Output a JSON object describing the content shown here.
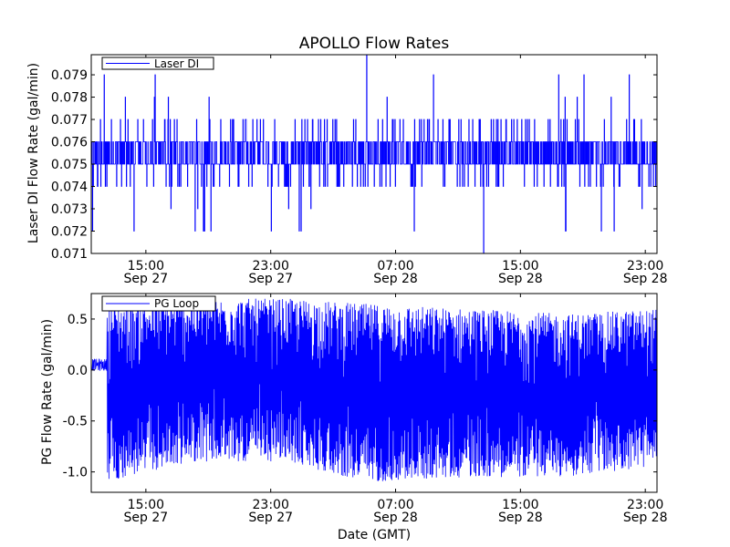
{
  "figure": {
    "title": "APOLLO Flow Rates",
    "xlabel": "Date (GMT)"
  },
  "chart_data": [
    {
      "type": "line",
      "ylabel": "Laser DI Flow Rate (gal/min)",
      "ylim": [
        0.071,
        0.0799
      ],
      "xlim": [
        "2012-09-27 11:30",
        "2012-09-28 23:45"
      ],
      "yticks": [
        0.071,
        0.072,
        0.073,
        0.074,
        0.075,
        0.076,
        0.077,
        0.078,
        0.079
      ],
      "ytick_labels": [
        "0.071",
        "0.072",
        "0.073",
        "0.074",
        "0.075",
        "0.076",
        "0.077",
        "0.078",
        "0.079"
      ],
      "xticks": [
        {
          "date": "Sep 27",
          "time": "15:00"
        },
        {
          "date": "Sep 27",
          "time": "23:00"
        },
        {
          "date": "Sep 28",
          "time": "07:00"
        },
        {
          "date": "Sep 28",
          "time": "15:00"
        },
        {
          "date": "Sep 28",
          "time": "23:00"
        }
      ],
      "legend": {
        "label": "Laser DI",
        "placement": "top-left"
      },
      "series": [
        {
          "name": "Laser DI",
          "color": "#0000ff",
          "baseline": [
            0.0755,
            0.0755
          ],
          "band": [
            0.075,
            0.076
          ],
          "lower_band": 0.074,
          "upper_band": 0.077,
          "spike_highs": [
            0.078,
            0.079,
            0.0799
          ],
          "spike_lows": [
            0.073,
            0.072,
            0.071
          ]
        }
      ]
    },
    {
      "type": "line",
      "ylabel": "PG Flow Rate (gal/min)",
      "ylim": [
        -1.2,
        0.75
      ],
      "xlim": [
        "2012-09-27 11:30",
        "2012-09-28 23:45"
      ],
      "yticks": [
        0.5,
        0.0,
        -0.5,
        -1.0
      ],
      "ytick_labels": [
        "0.5",
        "0.0",
        "-0.5",
        "-1.0"
      ],
      "xticks": [
        {
          "date": "Sep 27",
          "time": "15:00"
        },
        {
          "date": "Sep 27",
          "time": "23:00"
        },
        {
          "date": "Sep 28",
          "time": "07:00"
        },
        {
          "date": "Sep 28",
          "time": "15:00"
        },
        {
          "date": "Sep 28",
          "time": "23:00"
        }
      ],
      "legend": {
        "label": "PG Loop",
        "placement": "top-left"
      },
      "series": [
        {
          "name": "PG Loop",
          "color": "#0000ff",
          "initial_value": 0.05,
          "oscillation_start": "2012-09-27 12:30",
          "envelope": [
            {
              "t": "2012-09-27 12:30",
              "upper": 0.65,
              "lower": -1.1
            },
            {
              "t": "2012-09-27 18:00",
              "upper": 0.7,
              "lower": -0.9
            },
            {
              "t": "2012-09-28 00:00",
              "upper": 0.7,
              "lower": -0.9
            },
            {
              "t": "2012-09-28 05:00",
              "upper": 0.65,
              "lower": -1.1
            },
            {
              "t": "2012-09-28 12:00",
              "upper": 0.6,
              "lower": -1.05
            },
            {
              "t": "2012-09-28 18:00",
              "upper": 0.55,
              "lower": -1.05
            },
            {
              "t": "2012-09-28 23:45",
              "upper": 0.6,
              "lower": -0.95
            }
          ]
        }
      ]
    }
  ]
}
